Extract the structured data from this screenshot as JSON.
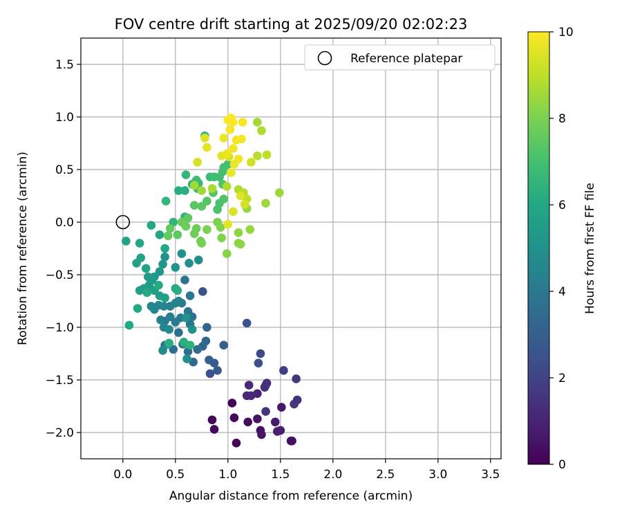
{
  "chart_data": {
    "type": "scatter",
    "title": "FOV centre drift starting at 2025/09/20 02:02:23",
    "xlabel": "Angular distance from reference (arcmin)",
    "ylabel": "Rotation from reference (arcmin)",
    "xlim": [
      -0.4,
      3.6
    ],
    "ylim": [
      -2.25,
      1.75
    ],
    "xticks": [
      0.0,
      0.5,
      1.0,
      1.5,
      2.0,
      2.5,
      3.0,
      3.5
    ],
    "xtick_labels": [
      "0.0",
      "0.5",
      "1.0",
      "1.5",
      "2.0",
      "2.5",
      "3.0",
      "3.5"
    ],
    "yticks": [
      1.5,
      1.0,
      0.5,
      0.0,
      -0.5,
      -1.0,
      -1.5,
      -2.0
    ],
    "ytick_labels": [
      "1.5",
      "1.0",
      "0.5",
      "0.0",
      "−0.5",
      "−1.0",
      "−1.5",
      "−2.0"
    ],
    "grid": true,
    "colormap": "viridis",
    "colorbar": {
      "label": "Hours from first FF file",
      "range": [
        0,
        10
      ],
      "ticks": [
        0,
        2,
        4,
        6,
        8,
        10
      ],
      "tick_labels": [
        "0",
        "2",
        "4",
        "6",
        "8",
        "10"
      ]
    },
    "legend": {
      "placement": "top-right",
      "entries": [
        {
          "label": "Reference platepar",
          "marker": "open-circle"
        }
      ]
    },
    "reference_point": {
      "x": 0.0,
      "y": 0.0
    },
    "points": [
      {
        "x": 0.85,
        "y": -1.88,
        "h": 0.2
      },
      {
        "x": 0.87,
        "y": -1.97,
        "h": 0.2
      },
      {
        "x": 1.08,
        "y": -2.1,
        "h": 0.1
      },
      {
        "x": 1.04,
        "y": -1.72,
        "h": 0.1
      },
      {
        "x": 1.06,
        "y": -1.86,
        "h": 0.3
      },
      {
        "x": 1.19,
        "y": -1.9,
        "h": 0.3
      },
      {
        "x": 1.28,
        "y": -1.87,
        "h": 0.5
      },
      {
        "x": 1.32,
        "y": -2.02,
        "h": 0.6
      },
      {
        "x": 1.31,
        "y": -1.98,
        "h": 0.4
      },
      {
        "x": 1.45,
        "y": -1.9,
        "h": 0.7
      },
      {
        "x": 1.51,
        "y": -1.76,
        "h": 0.6
      },
      {
        "x": 1.5,
        "y": -1.98,
        "h": 0.8
      },
      {
        "x": 1.47,
        "y": -1.99,
        "h": 0.9
      },
      {
        "x": 1.61,
        "y": -2.08,
        "h": 0.3
      },
      {
        "x": 1.6,
        "y": -2.08,
        "h": 0.4
      },
      {
        "x": 1.28,
        "y": -1.63,
        "h": 0.9
      },
      {
        "x": 1.36,
        "y": -1.55,
        "h": 1.0
      },
      {
        "x": 1.22,
        "y": -1.65,
        "h": 1.1
      },
      {
        "x": 1.2,
        "y": -1.55,
        "h": 1.2
      },
      {
        "x": 1.18,
        "y": -1.65,
        "h": 1.1
      },
      {
        "x": 1.35,
        "y": -1.57,
        "h": 1.3
      },
      {
        "x": 1.37,
        "y": -1.53,
        "h": 1.4
      },
      {
        "x": 1.36,
        "y": -1.8,
        "h": 1.5
      },
      {
        "x": 1.66,
        "y": -1.69,
        "h": 1.4
      },
      {
        "x": 1.63,
        "y": -1.73,
        "h": 1.5
      },
      {
        "x": 1.65,
        "y": -1.49,
        "h": 1.6
      },
      {
        "x": 1.53,
        "y": -1.41,
        "h": 1.8
      },
      {
        "x": 1.31,
        "y": -1.25,
        "h": 2.2
      },
      {
        "x": 1.29,
        "y": -1.34,
        "h": 2.4
      },
      {
        "x": 1.18,
        "y": -0.96,
        "h": 2.6
      },
      {
        "x": 0.76,
        "y": -0.66,
        "h": 2.5
      },
      {
        "x": 0.83,
        "y": -1.44,
        "h": 2.6
      },
      {
        "x": 0.9,
        "y": -1.41,
        "h": 2.8
      },
      {
        "x": 0.87,
        "y": -1.34,
        "h": 2.9
      },
      {
        "x": 0.82,
        "y": -1.31,
        "h": 3.0
      },
      {
        "x": 0.96,
        "y": -1.17,
        "h": 3.0
      },
      {
        "x": 0.8,
        "y": -1.0,
        "h": 3.2
      },
      {
        "x": 0.79,
        "y": -1.13,
        "h": 3.3
      },
      {
        "x": 0.76,
        "y": -1.18,
        "h": 3.3
      },
      {
        "x": 0.67,
        "y": -1.33,
        "h": 3.4
      },
      {
        "x": 0.71,
        "y": -1.21,
        "h": 3.5
      },
      {
        "x": 0.62,
        "y": -1.23,
        "h": 3.5
      },
      {
        "x": 0.57,
        "y": -1.16,
        "h": 3.6
      },
      {
        "x": 0.48,
        "y": -1.21,
        "h": 3.6
      },
      {
        "x": 0.4,
        "y": -1.17,
        "h": 3.7
      },
      {
        "x": 0.53,
        "y": -1.05,
        "h": 3.7
      },
      {
        "x": 0.64,
        "y": -0.97,
        "h": 3.8
      },
      {
        "x": 0.66,
        "y": -0.9,
        "h": 3.8
      },
      {
        "x": 0.62,
        "y": -0.85,
        "h": 3.9
      },
      {
        "x": 0.59,
        "y": -0.55,
        "h": 3.9
      },
      {
        "x": 0.64,
        "y": -0.7,
        "h": 4.0
      },
      {
        "x": 0.55,
        "y": -0.91,
        "h": 4.0
      },
      {
        "x": 0.5,
        "y": -0.95,
        "h": 4.1
      },
      {
        "x": 0.56,
        "y": -0.77,
        "h": 4.1
      },
      {
        "x": 0.45,
        "y": -0.9,
        "h": 4.2
      },
      {
        "x": 0.4,
        "y": -0.94,
        "h": 4.2
      },
      {
        "x": 0.36,
        "y": -0.93,
        "h": 4.3
      },
      {
        "x": 0.45,
        "y": -0.8,
        "h": 4.3
      },
      {
        "x": 0.5,
        "y": -0.77,
        "h": 4.4
      },
      {
        "x": 0.53,
        "y": -0.75,
        "h": 4.4
      },
      {
        "x": 0.39,
        "y": -0.8,
        "h": 4.5
      },
      {
        "x": 0.34,
        "y": -0.79,
        "h": 4.5
      },
      {
        "x": 0.27,
        "y": -0.8,
        "h": 4.6
      },
      {
        "x": 0.3,
        "y": -0.83,
        "h": 4.6
      },
      {
        "x": 0.39,
        "y": -1.0,
        "h": 4.6
      },
      {
        "x": 0.44,
        "y": -1.02,
        "h": 4.7
      },
      {
        "x": 0.38,
        "y": -1.22,
        "h": 4.7
      },
      {
        "x": 0.43,
        "y": -1.16,
        "h": 4.8
      },
      {
        "x": 0.58,
        "y": -1.15,
        "h": 4.8
      },
      {
        "x": 0.61,
        "y": -1.3,
        "h": 4.9
      },
      {
        "x": 0.66,
        "y": -1.02,
        "h": 5.0
      },
      {
        "x": 0.6,
        "y": -0.91,
        "h": 5.0
      },
      {
        "x": 0.72,
        "y": -0.36,
        "h": 4.8
      },
      {
        "x": 0.63,
        "y": -0.39,
        "h": 4.9
      },
      {
        "x": 0.56,
        "y": -0.3,
        "h": 5.0
      },
      {
        "x": 0.5,
        "y": -0.43,
        "h": 5.1
      },
      {
        "x": 0.4,
        "y": -0.33,
        "h": 5.1
      },
      {
        "x": 0.38,
        "y": -0.4,
        "h": 5.2
      },
      {
        "x": 0.35,
        "y": -0.47,
        "h": 5.2
      },
      {
        "x": 0.3,
        "y": -0.52,
        "h": 5.3
      },
      {
        "x": 0.28,
        "y": -0.55,
        "h": 5.3
      },
      {
        "x": 0.24,
        "y": -0.52,
        "h": 5.4
      },
      {
        "x": 0.25,
        "y": -0.6,
        "h": 5.4
      },
      {
        "x": 0.3,
        "y": -0.65,
        "h": 5.5
      },
      {
        "x": 0.35,
        "y": -0.7,
        "h": 5.5
      },
      {
        "x": 0.4,
        "y": -0.72,
        "h": 5.6
      },
      {
        "x": 0.2,
        "y": -0.63,
        "h": 5.6
      },
      {
        "x": 0.16,
        "y": -0.65,
        "h": 5.6
      },
      {
        "x": 0.13,
        "y": -0.39,
        "h": 5.7
      },
      {
        "x": 0.17,
        "y": -0.34,
        "h": 5.7
      },
      {
        "x": 0.22,
        "y": -0.44,
        "h": 5.8
      },
      {
        "x": 0.03,
        "y": -0.18,
        "h": 5.8
      },
      {
        "x": 0.16,
        "y": -0.2,
        "h": 5.9
      },
      {
        "x": 0.35,
        "y": -0.12,
        "h": 5.9
      },
      {
        "x": 0.4,
        "y": -0.25,
        "h": 6.0
      },
      {
        "x": 0.27,
        "y": -0.03,
        "h": 6.0
      },
      {
        "x": 0.14,
        "y": -0.82,
        "h": 6.0
      },
      {
        "x": 0.06,
        "y": -0.98,
        "h": 6.0
      },
      {
        "x": 0.23,
        "y": -0.67,
        "h": 6.1
      },
      {
        "x": 0.34,
        "y": -0.6,
        "h": 6.1
      },
      {
        "x": 0.5,
        "y": -0.63,
        "h": 6.2
      },
      {
        "x": 0.52,
        "y": -0.65,
        "h": 6.2
      },
      {
        "x": 0.44,
        "y": -1.15,
        "h": 6.3
      },
      {
        "x": 0.58,
        "y": -1.14,
        "h": 6.3
      },
      {
        "x": 0.64,
        "y": -1.17,
        "h": 6.4
      },
      {
        "x": 0.53,
        "y": 0.3,
        "h": 6.2
      },
      {
        "x": 0.59,
        "y": 0.3,
        "h": 6.3
      },
      {
        "x": 0.66,
        "y": 0.36,
        "h": 6.4
      },
      {
        "x": 0.59,
        "y": 0.05,
        "h": 6.4
      },
      {
        "x": 0.48,
        "y": 0.0,
        "h": 6.5
      },
      {
        "x": 0.41,
        "y": 0.2,
        "h": 6.5
      },
      {
        "x": 0.6,
        "y": 0.45,
        "h": 6.6
      },
      {
        "x": 0.78,
        "y": 0.82,
        "h": 6.6
      },
      {
        "x": 0.71,
        "y": 0.32,
        "h": 6.7
      },
      {
        "x": 0.72,
        "y": 0.37,
        "h": 6.7
      },
      {
        "x": 0.7,
        "y": 0.4,
        "h": 6.8
      },
      {
        "x": 0.83,
        "y": 0.43,
        "h": 6.8
      },
      {
        "x": 0.87,
        "y": 0.43,
        "h": 6.9
      },
      {
        "x": 0.92,
        "y": 0.43,
        "h": 6.9
      },
      {
        "x": 0.95,
        "y": 0.48,
        "h": 7.0
      },
      {
        "x": 0.96,
        "y": 0.52,
        "h": 7.0
      },
      {
        "x": 1.0,
        "y": 0.55,
        "h": 7.0
      },
      {
        "x": 0.9,
        "y": 0.12,
        "h": 7.1
      },
      {
        "x": 0.92,
        "y": 0.18,
        "h": 7.1
      },
      {
        "x": 0.96,
        "y": 0.22,
        "h": 7.2
      },
      {
        "x": 0.95,
        "y": 0.36,
        "h": 7.2
      },
      {
        "x": 0.86,
        "y": 0.28,
        "h": 7.3
      },
      {
        "x": 0.8,
        "y": 0.2,
        "h": 7.3
      },
      {
        "x": 0.75,
        "y": 0.15,
        "h": 7.4
      },
      {
        "x": 0.68,
        "y": 0.16,
        "h": 7.4
      },
      {
        "x": 0.62,
        "y": 0.04,
        "h": 7.5
      },
      {
        "x": 0.52,
        "y": -0.12,
        "h": 7.5
      },
      {
        "x": 0.45,
        "y": -0.06,
        "h": 7.6
      },
      {
        "x": 0.43,
        "y": -0.13,
        "h": 7.6
      },
      {
        "x": 0.56,
        "y": 0.0,
        "h": 7.7
      },
      {
        "x": 0.6,
        "y": -0.04,
        "h": 7.7
      },
      {
        "x": 0.7,
        "y": -0.06,
        "h": 7.8
      },
      {
        "x": 0.68,
        "y": -0.11,
        "h": 7.8
      },
      {
        "x": 0.74,
        "y": -0.18,
        "h": 7.9
      },
      {
        "x": 0.75,
        "y": -0.2,
        "h": 7.9
      },
      {
        "x": 0.8,
        "y": -0.07,
        "h": 8.0
      },
      {
        "x": 0.9,
        "y": 0.0,
        "h": 8.0
      },
      {
        "x": 0.93,
        "y": -0.05,
        "h": 8.1
      },
      {
        "x": 0.94,
        "y": -0.15,
        "h": 8.1
      },
      {
        "x": 0.99,
        "y": -0.3,
        "h": 8.2
      },
      {
        "x": 1.1,
        "y": -0.2,
        "h": 8.2
      },
      {
        "x": 1.12,
        "y": -0.21,
        "h": 8.3
      },
      {
        "x": 1.1,
        "y": -0.1,
        "h": 8.3
      },
      {
        "x": 1.21,
        "y": -0.07,
        "h": 8.4
      },
      {
        "x": 1.18,
        "y": 0.13,
        "h": 8.4
      },
      {
        "x": 1.36,
        "y": 0.18,
        "h": 8.5
      },
      {
        "x": 1.49,
        "y": 0.28,
        "h": 8.5
      },
      {
        "x": 0.68,
        "y": 0.35,
        "h": 8.6
      },
      {
        "x": 0.75,
        "y": 0.3,
        "h": 8.6
      },
      {
        "x": 0.85,
        "y": 0.32,
        "h": 8.7
      },
      {
        "x": 0.99,
        "y": 0.34,
        "h": 8.8
      },
      {
        "x": 1.1,
        "y": 0.31,
        "h": 8.8
      },
      {
        "x": 1.15,
        "y": 0.28,
        "h": 8.9
      },
      {
        "x": 1.18,
        "y": 0.22,
        "h": 9.0
      },
      {
        "x": 1.28,
        "y": 0.95,
        "h": 8.6
      },
      {
        "x": 1.32,
        "y": 0.87,
        "h": 8.7
      },
      {
        "x": 1.28,
        "y": 0.63,
        "h": 8.9
      },
      {
        "x": 1.37,
        "y": 0.64,
        "h": 9.0
      },
      {
        "x": 1.22,
        "y": 0.57,
        "h": 9.3
      },
      {
        "x": 1.16,
        "y": 0.17,
        "h": 9.4
      },
      {
        "x": 1.12,
        "y": 0.25,
        "h": 9.5
      },
      {
        "x": 1.05,
        "y": 0.1,
        "h": 9.5
      },
      {
        "x": 1.0,
        "y": -0.02,
        "h": 9.6
      },
      {
        "x": 0.94,
        "y": 0.63,
        "h": 9.6
      },
      {
        "x": 0.99,
        "y": 0.65,
        "h": 9.7
      },
      {
        "x": 0.96,
        "y": 0.8,
        "h": 9.7
      },
      {
        "x": 1.05,
        "y": 0.7,
        "h": 9.8
      },
      {
        "x": 1.08,
        "y": 0.78,
        "h": 9.8
      },
      {
        "x": 1.13,
        "y": 0.79,
        "h": 9.9
      },
      {
        "x": 1.02,
        "y": 0.88,
        "h": 9.9
      },
      {
        "x": 1.05,
        "y": 0.95,
        "h": 10.0
      },
      {
        "x": 1.0,
        "y": 0.97,
        "h": 10.0
      },
      {
        "x": 1.03,
        "y": 0.99,
        "h": 10.0
      },
      {
        "x": 1.14,
        "y": 0.95,
        "h": 9.9
      },
      {
        "x": 1.1,
        "y": 0.6,
        "h": 9.8
      },
      {
        "x": 1.06,
        "y": 0.55,
        "h": 9.7
      },
      {
        "x": 1.03,
        "y": 0.47,
        "h": 9.7
      },
      {
        "x": 0.78,
        "y": 0.8,
        "h": 9.5
      },
      {
        "x": 0.8,
        "y": 0.71,
        "h": 9.6
      },
      {
        "x": 0.71,
        "y": 0.57,
        "h": 9.4
      },
      {
        "x": 1.01,
        "y": 0.62,
        "h": 9.4
      }
    ]
  }
}
